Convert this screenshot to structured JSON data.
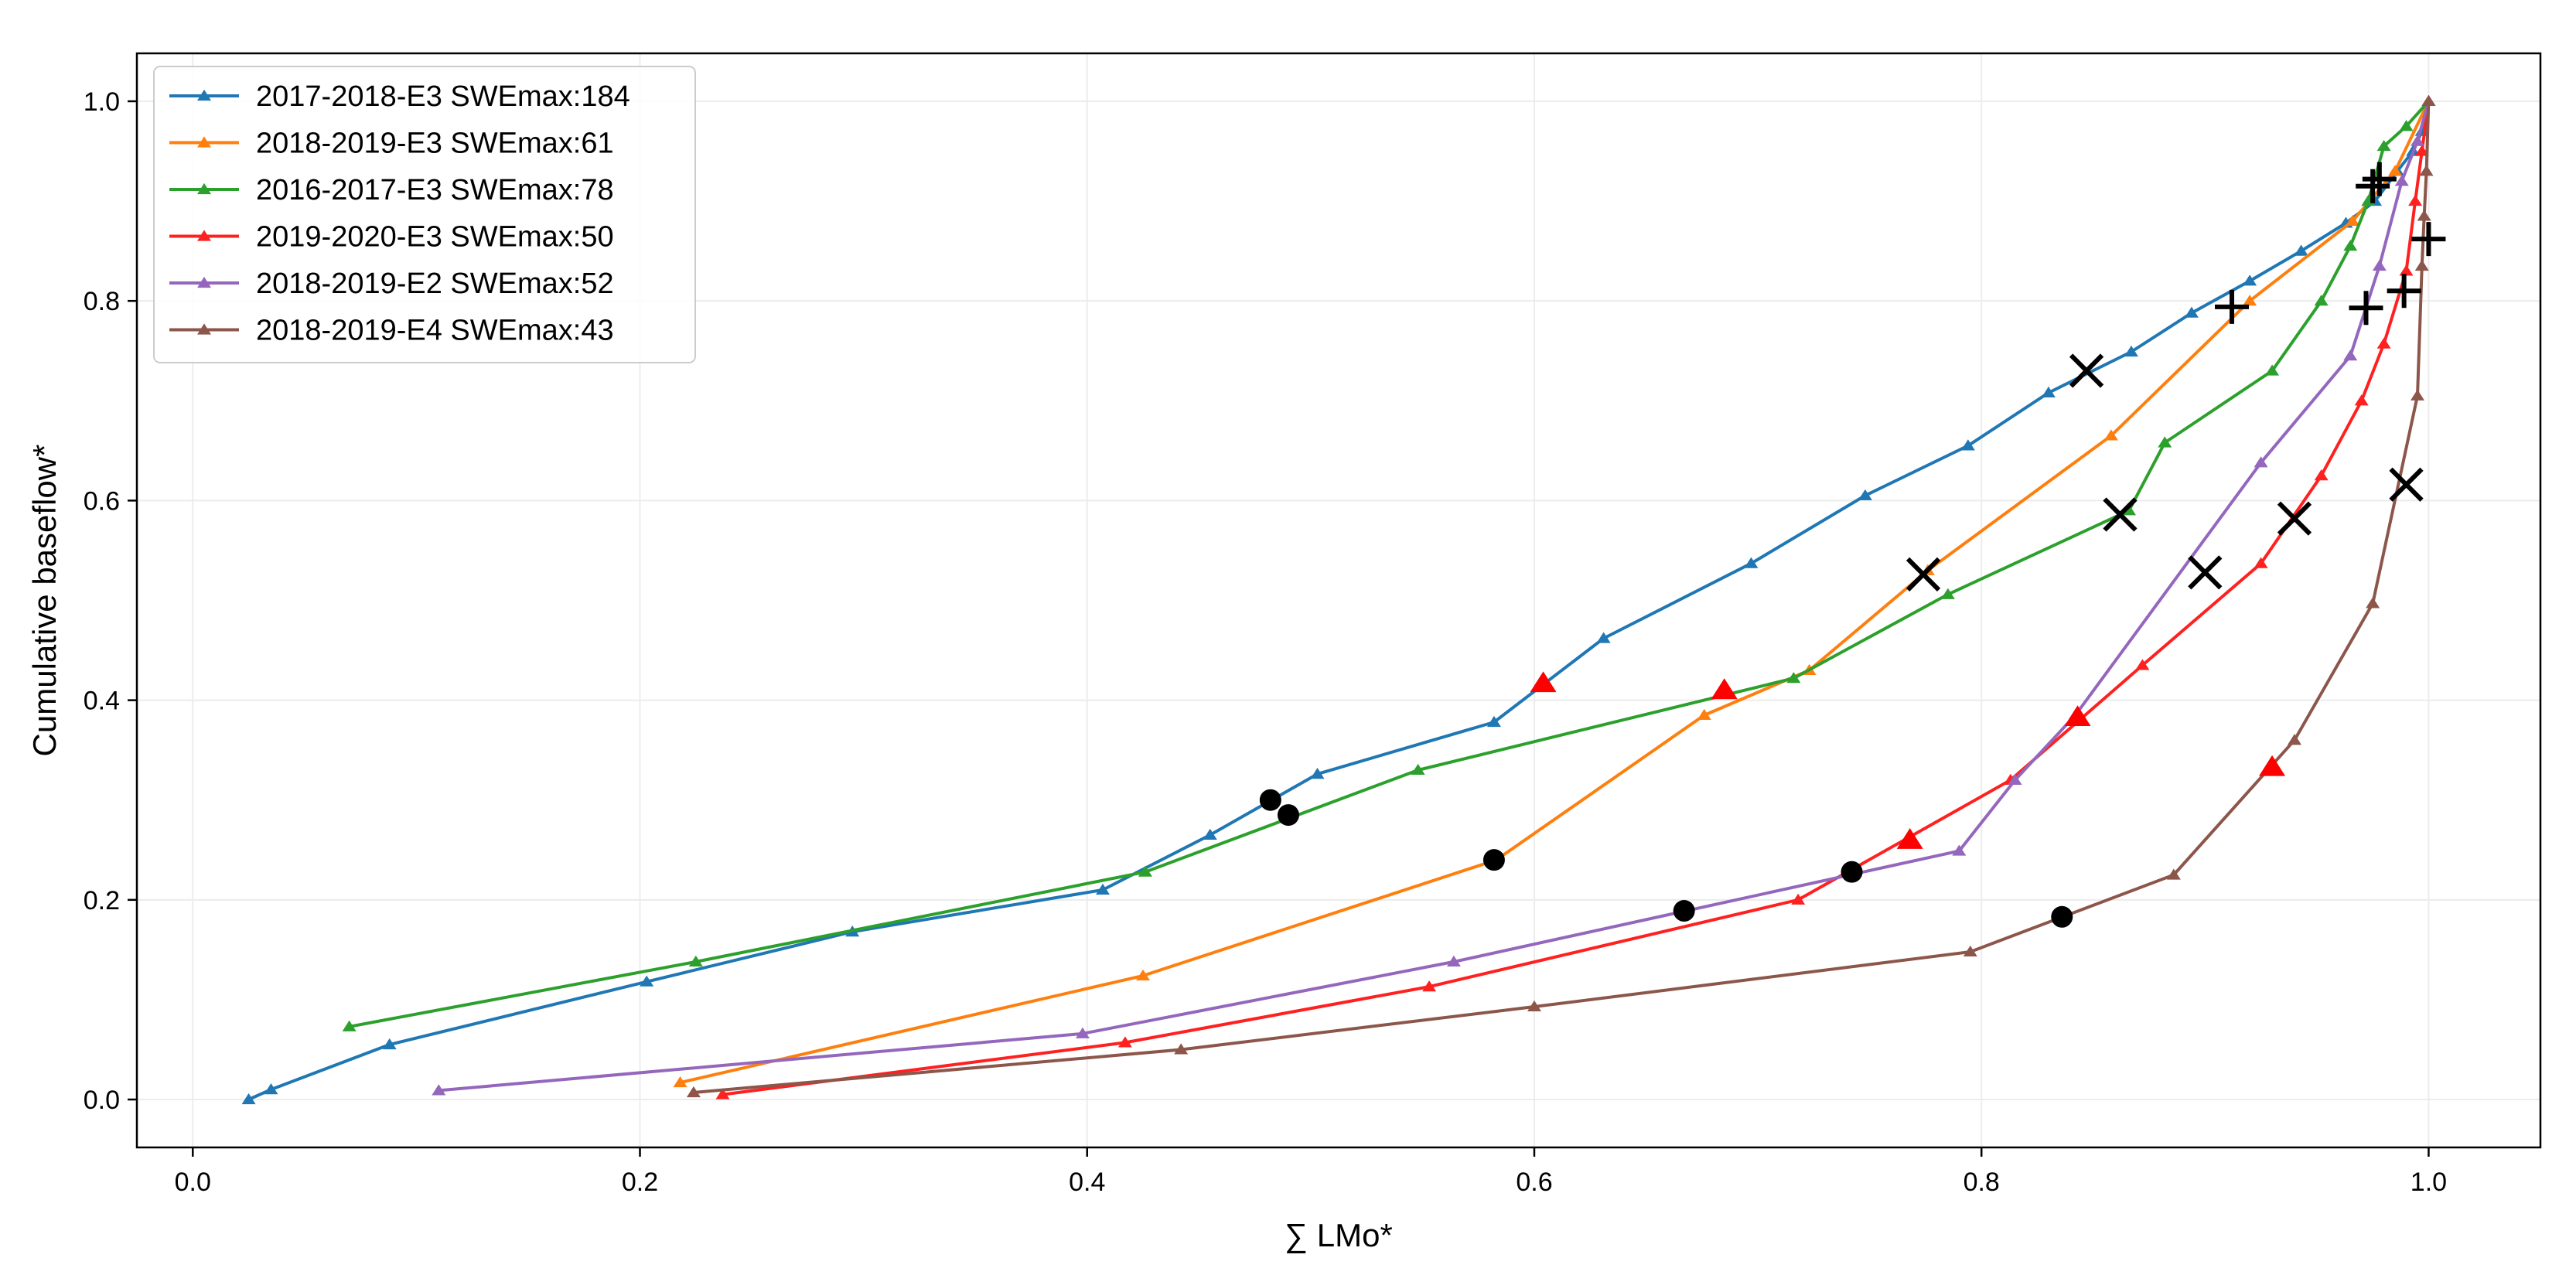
{
  "chart_data": {
    "type": "line",
    "xlabel": "∑ LMo*",
    "ylabel": "Cumulative baseflow*",
    "xlim": [
      -0.025,
      1.05
    ],
    "ylim": [
      -0.048,
      1.048
    ],
    "xticks": [
      0.0,
      0.2,
      0.4,
      0.6,
      0.8,
      1.0
    ],
    "xtick_labels": [
      "0.0",
      "0.2",
      "0.4",
      "0.6",
      "0.8",
      "1.0"
    ],
    "yticks": [
      0.0,
      0.2,
      0.4,
      0.6,
      0.8,
      1.0
    ],
    "ytick_labels": [
      "0.0",
      "0.2",
      "0.4",
      "0.6",
      "0.8",
      "1.0"
    ],
    "grid": true,
    "legend_position": "top-left",
    "series": [
      {
        "name": "2017-2018-E3 SWEmax:184",
        "color": "#1f77b4",
        "x": [
          0.025,
          0.035,
          0.088,
          0.203,
          0.295,
          0.407,
          0.455,
          0.503,
          0.582,
          0.631,
          0.697,
          0.748,
          0.794,
          0.83,
          0.867,
          0.894,
          0.92,
          0.943,
          0.963,
          0.976,
          0.986,
          0.993,
          0.997,
          1.0
        ],
        "y": [
          0.0,
          0.01,
          0.055,
          0.118,
          0.168,
          0.21,
          0.265,
          0.326,
          0.378,
          0.462,
          0.537,
          0.605,
          0.655,
          0.708,
          0.749,
          0.788,
          0.82,
          0.85,
          0.878,
          0.9,
          0.93,
          0.95,
          0.97,
          1.0
        ],
        "markers": {
          "circle": [
            0.482,
            0.3
          ],
          "triangle": [
            0.604,
            0.417
          ],
          "x": [
            0.847,
            0.73
          ],
          "plus": [
            0.978,
            0.922
          ]
        }
      },
      {
        "name": "2018-2019-E3 SWEmax:61",
        "color": "#ff7f0e",
        "x": [
          0.218,
          0.425,
          0.583,
          0.676,
          0.723,
          0.776,
          0.858,
          0.92,
          0.966,
          0.985,
          1.0
        ],
        "y": [
          0.017,
          0.124,
          0.24,
          0.385,
          0.43,
          0.53,
          0.665,
          0.8,
          0.88,
          0.93,
          1.0
        ],
        "markers": {
          "circle": [
            0.582,
            0.24
          ],
          "triangle": [
            0.685,
            0.41
          ],
          "x": [
            0.774,
            0.526
          ],
          "plus": [
            0.912,
            0.794
          ]
        }
      },
      {
        "name": "2016-2017-E3 SWEmax:78",
        "color": "#2ca02c",
        "x": [
          0.07,
          0.225,
          0.426,
          0.548,
          0.716,
          0.785,
          0.866,
          0.882,
          0.93,
          0.952,
          0.965,
          0.973,
          0.98,
          0.99,
          1.0
        ],
        "y": [
          0.073,
          0.138,
          0.228,
          0.33,
          0.422,
          0.506,
          0.59,
          0.658,
          0.73,
          0.8,
          0.855,
          0.9,
          0.955,
          0.975,
          1.0
        ],
        "markers": {
          "circle": [
            0.49,
            0.285
          ],
          "triangle": [
            0.685,
            0.41
          ],
          "x": [
            0.862,
            0.586
          ],
          "plus": [
            0.975,
            0.915
          ]
        }
      },
      {
        "name": "2019-2020-E3 SWEmax:50",
        "color": "#ff2020",
        "x": [
          0.237,
          0.417,
          0.553,
          0.718,
          0.813,
          0.872,
          0.925,
          0.952,
          0.97,
          0.98,
          0.99,
          0.994,
          0.997,
          1.0
        ],
        "y": [
          0.005,
          0.057,
          0.113,
          0.2,
          0.32,
          0.435,
          0.537,
          0.625,
          0.7,
          0.757,
          0.83,
          0.9,
          0.95,
          1.0
        ],
        "markers": {
          "circle": [
            0.742,
            0.228
          ],
          "triangle": [
            0.768,
            0.26
          ],
          "x": [
            0.94,
            0.582
          ],
          "plus": [
            0.989,
            0.81
          ]
        }
      },
      {
        "name": "2018-2019-E2 SWEmax:52",
        "color": "#9467bd",
        "x": [
          0.11,
          0.398,
          0.564,
          0.79,
          0.815,
          0.842,
          0.925,
          0.965,
          0.978,
          0.988,
          0.995,
          1.0
        ],
        "y": [
          0.009,
          0.066,
          0.138,
          0.249,
          0.32,
          0.385,
          0.638,
          0.745,
          0.835,
          0.92,
          0.96,
          1.0
        ],
        "markers": {
          "circle": [
            0.667,
            0.189
          ],
          "triangle": [
            0.843,
            0.383
          ],
          "x": [
            0.9,
            0.528
          ],
          "plus": [
            0.972,
            0.793
          ]
        }
      },
      {
        "name": "2018-2019-E4 SWEmax:43",
        "color": "#8c564b",
        "x": [
          0.224,
          0.442,
          0.6,
          0.795,
          0.886,
          0.94,
          0.975,
          0.995,
          0.997,
          0.998,
          0.999,
          1.0
        ],
        "y": [
          0.007,
          0.05,
          0.093,
          0.148,
          0.225,
          0.36,
          0.497,
          0.705,
          0.835,
          0.885,
          0.93,
          1.0
        ],
        "markers": {
          "circle": [
            0.836,
            0.183
          ],
          "triangle": [
            0.93,
            0.333
          ],
          "x": [
            0.99,
            0.616
          ],
          "plus": [
            1.0,
            0.862
          ]
        }
      }
    ]
  }
}
